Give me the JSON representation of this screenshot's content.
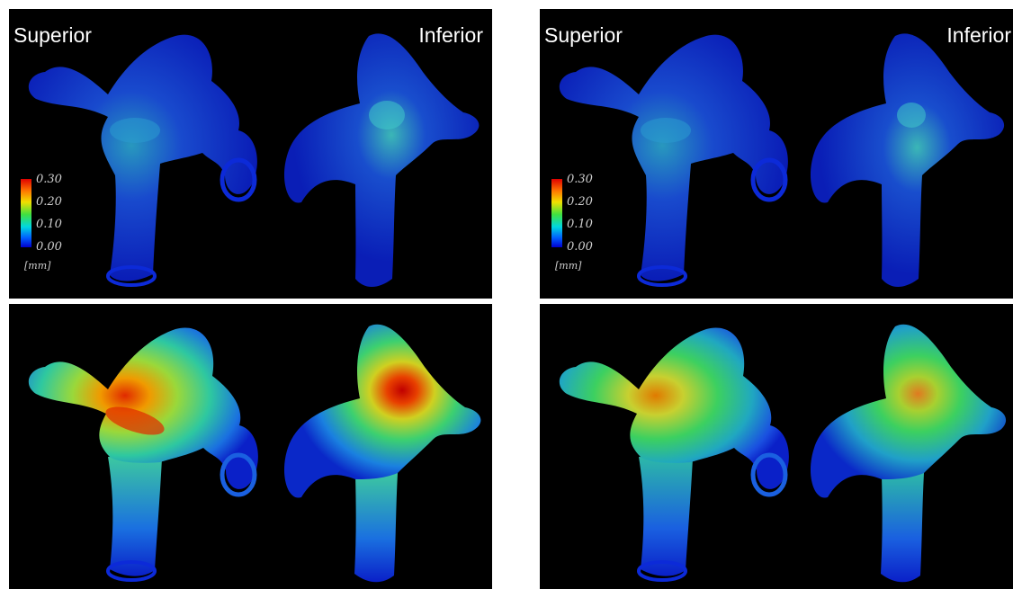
{
  "panels": [
    {
      "id": "top-left",
      "labels": {
        "left": "Superior",
        "right": "Inferior"
      },
      "show_legend": true,
      "level": "low"
    },
    {
      "id": "top-right",
      "labels": {
        "left": "Superior",
        "right": "Inferior"
      },
      "show_legend": true,
      "level": "low"
    },
    {
      "id": "bottom-left",
      "labels": {
        "left": "",
        "right": ""
      },
      "show_legend": false,
      "level": "high"
    },
    {
      "id": "bottom-right",
      "labels": {
        "left": "",
        "right": ""
      },
      "show_legend": false,
      "level": "medium"
    }
  ],
  "legend": {
    "ticks": [
      "0.30",
      "0.20",
      "0.10",
      "0.00"
    ],
    "unit": "[mm]"
  },
  "colors": {
    "background": "#000000",
    "low": "#0a2fe0",
    "mid": "#2fd65a",
    "high": "#e01a00"
  }
}
